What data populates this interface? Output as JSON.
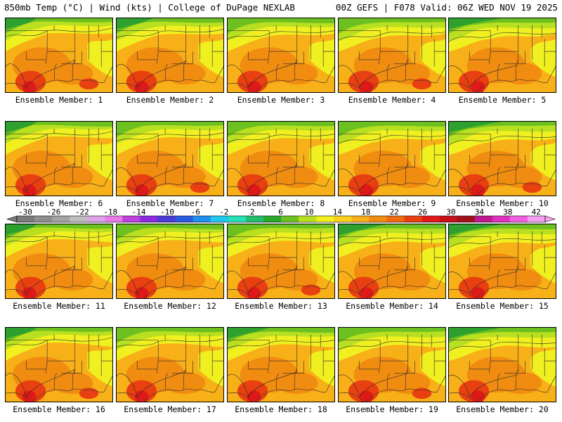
{
  "header": {
    "left": "850mb Temp (°C) | Wind (kts) | College of DuPage NEXLAB",
    "right": "00Z GEFS | F078 Valid: 06Z WED NOV 19 2025"
  },
  "members": [
    {
      "label": "Ensemble Member: 1",
      "id": 1
    },
    {
      "label": "Ensemble Member: 2",
      "id": 2
    },
    {
      "label": "Ensemble Member: 3",
      "id": 3
    },
    {
      "label": "Ensemble Member: 4",
      "id": 4
    },
    {
      "label": "Ensemble Member: 5",
      "id": 5
    },
    {
      "label": "Ensemble Member: 6",
      "id": 6
    },
    {
      "label": "Ensemble Member: 7",
      "id": 7
    },
    {
      "label": "Ensemble Member: 8",
      "id": 8
    },
    {
      "label": "Ensemble Member: 9",
      "id": 9
    },
    {
      "label": "Ensemble Member: 10",
      "id": 10
    },
    {
      "label": "Ensemble Member: 11",
      "id": 11
    },
    {
      "label": "Ensemble Member: 12",
      "id": 12
    },
    {
      "label": "Ensemble Member: 13",
      "id": 13
    },
    {
      "label": "Ensemble Member: 14",
      "id": 14
    },
    {
      "label": "Ensemble Member: 15",
      "id": 15
    },
    {
      "label": "Ensemble Member: 16",
      "id": 16
    },
    {
      "label": "Ensemble Member: 17",
      "id": 17
    },
    {
      "label": "Ensemble Member: 18",
      "id": 18
    },
    {
      "label": "Ensemble Member: 19",
      "id": 19
    },
    {
      "label": "Ensemble Member: 20",
      "id": 20
    }
  ],
  "colorbar": {
    "tick_labels": [
      "-30",
      "-26",
      "-22",
      "-18",
      "-14",
      "-10",
      "-6",
      "-2",
      "2",
      "6",
      "10",
      "14",
      "18",
      "22",
      "26",
      "30",
      "34",
      "38",
      "42"
    ],
    "colors": [
      "#7a7a7a",
      "#8e8e8e",
      "#a3a3a3",
      "#bdbdbd",
      "#d9a3e8",
      "#e87ae8",
      "#c040e0",
      "#8a2be2",
      "#4b3ad6",
      "#2a5be0",
      "#1f8ff0",
      "#20c8f0",
      "#24e0b8",
      "#20c070",
      "#2aa82a",
      "#6cc020",
      "#b8e020",
      "#f0f020",
      "#f8d020",
      "#f8b018",
      "#f08c10",
      "#f06a10",
      "#e84010",
      "#e01818",
      "#c81018",
      "#a01018",
      "#c01890",
      "#e030c0",
      "#f060e0",
      "#f8a0f0"
    ]
  },
  "map_colors": {
    "green_dark": "#2ea02e",
    "green": "#6cc020",
    "yellow_green": "#b8e020",
    "yellow": "#f0f020",
    "gold": "#f8d020",
    "orange_light": "#f8b018",
    "orange": "#f08c10",
    "red_orange": "#e84010",
    "red": "#e01818"
  }
}
